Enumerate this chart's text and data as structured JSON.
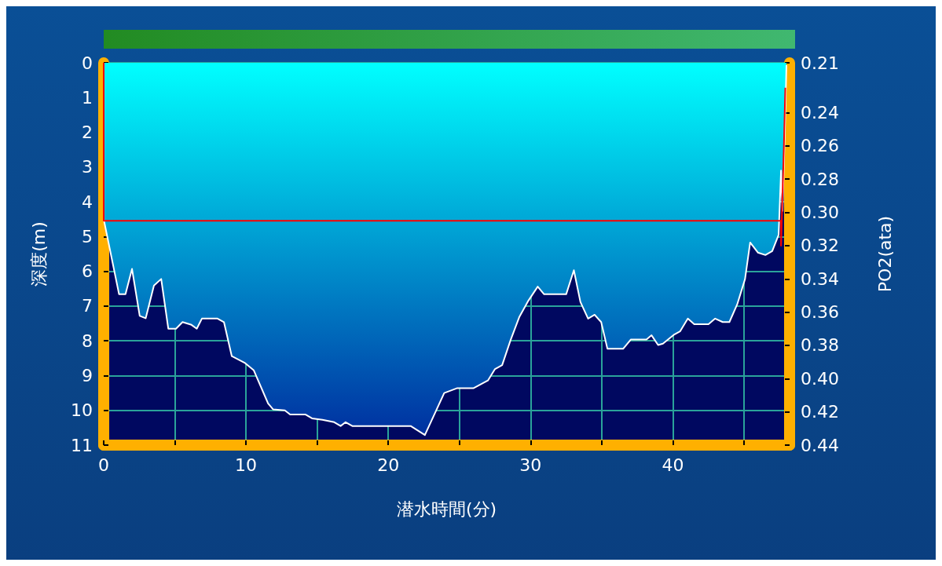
{
  "chart_data": {
    "type": "area",
    "xlabel": "潜水時間(分)",
    "ylabel": "深度(m)",
    "y2label": "PO2(ata)",
    "xlim": [
      0,
      48.2
    ],
    "xticks": [
      0,
      {
        "value": 5,
        "label": null
      },
      10,
      {
        "value": 15,
        "label": null
      },
      20,
      {
        "value": 25,
        "label": null
      },
      30,
      {
        "value": 35,
        "label": null
      },
      40,
      {
        "value": 45,
        "label": null
      }
    ],
    "ylim": [
      11,
      0
    ],
    "yticks": [
      0,
      1,
      2,
      3,
      4,
      5,
      6,
      7,
      8,
      9,
      10,
      11
    ],
    "y2lim": [
      0.44,
      0.21
    ],
    "y2ticks": [
      0.21,
      0.24,
      0.26,
      0.28,
      {
        "value": 0.3,
        "label": "0.30"
      },
      0.32,
      0.34,
      0.36,
      0.38,
      {
        "value": 0.4,
        "label": "0.40"
      },
      0.42,
      0.44
    ],
    "grid": true,
    "series": [
      {
        "color": "#ffffff",
        "x": [
          0,
          1.08,
          1.53,
          1.99,
          2.53,
          2.95,
          3.53,
          4.04,
          4.54,
          5.08,
          5.54,
          6.17,
          6.54,
          6.9,
          8.0,
          8.45,
          9.0,
          9.9,
          10.55,
          11.55,
          11.9,
          12.73,
          13.1,
          14.19,
          14.64,
          15.37,
          16.2,
          16.65,
          17.0,
          17.47,
          21.57,
          22.57,
          23.39,
          23.93,
          24.85,
          26.0,
          27.0,
          27.5,
          28.0,
          28.6,
          29.2,
          29.85,
          30.5,
          30.95,
          32.5,
          33.04,
          33.5,
          34.04,
          34.5,
          34.96,
          35.4,
          36.5,
          37.05,
          38.14,
          38.5,
          38.96,
          39.3,
          40.05,
          40.5,
          41.05,
          41.5,
          42.5,
          42.97,
          43.5,
          43.97,
          44.52,
          45.07,
          45.43,
          45.97,
          46.5,
          46.98,
          47.43,
          47.6,
          47.7,
          47.87,
          47.98
        ],
        "values": [
          4.5,
          6.66,
          6.66,
          5.93,
          7.28,
          7.35,
          6.41,
          6.22,
          7.65,
          7.65,
          7.46,
          7.54,
          7.65,
          7.36,
          7.36,
          7.46,
          8.44,
          8.63,
          8.85,
          9.8,
          9.97,
          10.0,
          10.12,
          10.12,
          10.23,
          10.27,
          10.34,
          10.45,
          10.34,
          10.45,
          10.45,
          10.71,
          9.98,
          9.5,
          9.36,
          9.36,
          9.14,
          8.81,
          8.7,
          7.97,
          7.32,
          6.84,
          6.44,
          6.66,
          6.66,
          5.97,
          6.88,
          7.36,
          7.25,
          7.46,
          8.23,
          8.23,
          7.96,
          7.96,
          7.84,
          8.12,
          8.08,
          7.83,
          7.73,
          7.36,
          7.52,
          7.52,
          7.36,
          7.46,
          7.46,
          6.95,
          6.22,
          5.17,
          5.46,
          5.53,
          5.42,
          4.95,
          3.1,
          4.26,
          1.92,
          0.07
        ]
      },
      {
        "type": "line",
        "axis": "y2",
        "color": "#ff0000",
        "x": [
          0,
          0,
          47.6,
          47.6,
          47.7,
          47.8,
          47.9
        ],
        "values": [
          0.21,
          0.305,
          0.305,
          0.32,
          0.29,
          0.26,
          0.225
        ]
      }
    ]
  }
}
